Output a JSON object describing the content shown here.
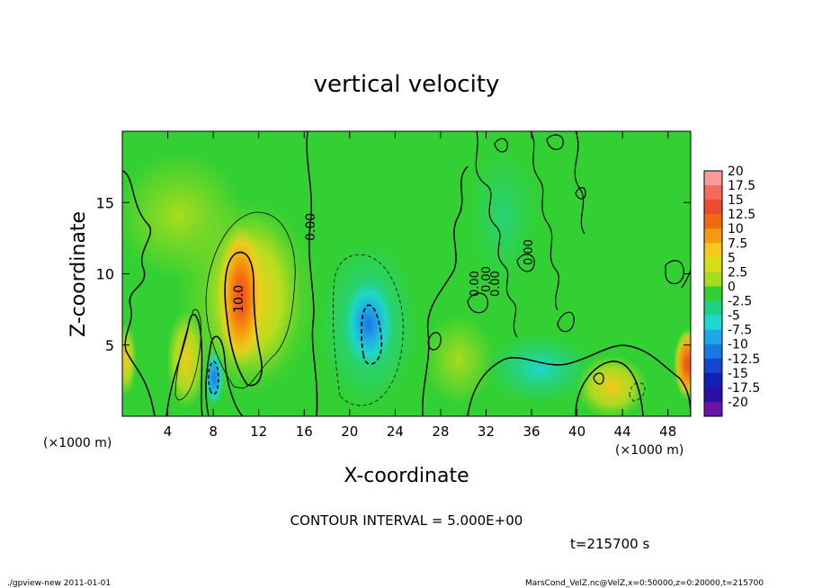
{
  "chart_data": {
    "type": "heatmap",
    "title": "vertical velocity",
    "xlabel": "X-coordinate",
    "ylabel": "Z-coordinate",
    "x_unit_left": "(×1000 m)",
    "x_unit_right": "(×1000 m)",
    "xlim": [
      0,
      50
    ],
    "ylim": [
      0,
      20
    ],
    "x_ticks": [
      "4",
      "8",
      "12",
      "16",
      "20",
      "24",
      "28",
      "32",
      "36",
      "40",
      "44",
      "48"
    ],
    "y_ticks": [
      "5",
      "10",
      "15"
    ],
    "contour_interval_text": "CONTOUR INTERVAL = 5.000E+00",
    "time_text": "t=215700 s",
    "footer_left": "./gpview-new   2011-01-01",
    "footer_right": "MarsCond_VelZ.nc@VelZ,x=0:50000,z=0:20000,t=215700",
    "contour_labels": [
      "10.0",
      "0.00",
      "0.00",
      "0.00",
      "0.00",
      "0.00"
    ],
    "colorbar": {
      "levels": [
        "20",
        "17.5",
        "15",
        "12.5",
        "10",
        "7.5",
        "5",
        "2.5",
        "0",
        "-2.5",
        "-5",
        "-7.5",
        "-10",
        "-12.5",
        "-15",
        "-17.5",
        "-20"
      ],
      "colors": [
        "#f89a9a",
        "#f46a5f",
        "#ee4a2e",
        "#f06a12",
        "#f59a0e",
        "#f7c81e",
        "#d6df1a",
        "#a6dc1e",
        "#33d033",
        "#1ed28c",
        "#1ed8d2",
        "#1ea8e6",
        "#1a78e2",
        "#1446d2",
        "#1220b4",
        "#2a10a8",
        "#6a14a8"
      ]
    },
    "features": [
      {
        "x": 10.5,
        "z": 8.5,
        "value": 12.5,
        "kind": "updraft maximum"
      },
      {
        "x": 8.0,
        "z": 3.0,
        "value": -7.5,
        "kind": "downdraft"
      },
      {
        "x": 21.5,
        "z": 6.5,
        "value": -7.5,
        "kind": "downdraft"
      },
      {
        "x": 43.0,
        "z": 2.0,
        "value": 5.0,
        "kind": "updraft"
      },
      {
        "x": 49.5,
        "z": 3.5,
        "value": 7.5,
        "kind": "updraft"
      }
    ]
  }
}
